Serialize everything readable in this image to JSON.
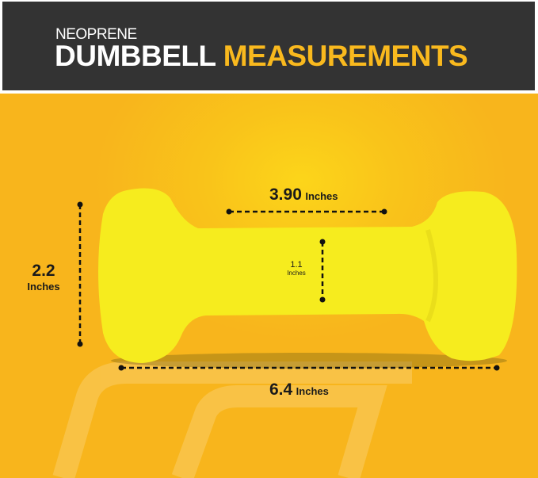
{
  "header": {
    "subtitle": "NEOPRENE",
    "title_white": "DUMBBELL",
    "title_accent": "MEASUREMENTS"
  },
  "colors": {
    "header_bg": "#333333",
    "accent": "#F9B91E",
    "background": "#F8B51C",
    "dumbbell": "#F6EC1E"
  },
  "measurements": {
    "handle_length": {
      "value": "3.90",
      "unit": "Inches"
    },
    "head_height": {
      "value": "2.2",
      "unit": "Inches"
    },
    "handle_diameter": {
      "value": "1.1",
      "unit": "Inches"
    },
    "total_length": {
      "value": "6.4",
      "unit": "Inches"
    }
  }
}
